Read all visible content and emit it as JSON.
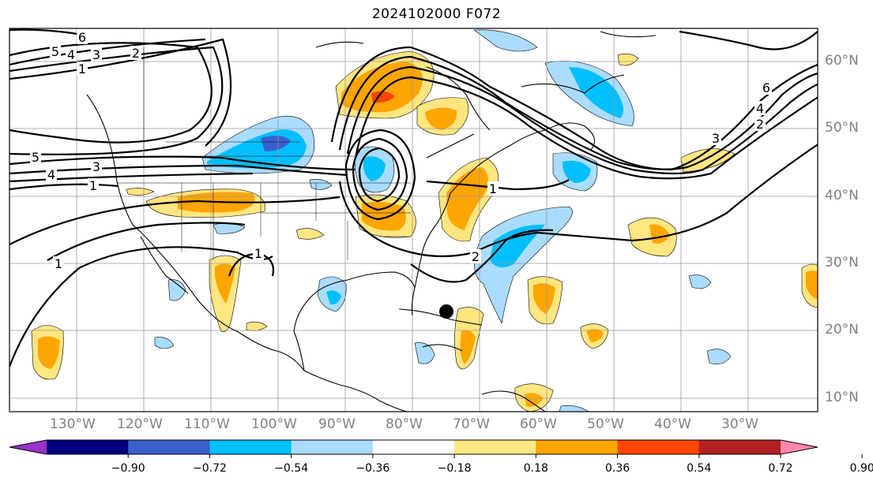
{
  "title": "2024102000 F072",
  "lat_labels": [
    "60°N",
    "50°N",
    "40°N",
    "30°N",
    "20°N",
    "10°N"
  ],
  "lon_labels": [
    "130°W",
    "120°W",
    "110°W",
    "100°W",
    "90°W",
    "80°W",
    "70°W",
    "60°W",
    "50°W",
    "40°W",
    "30°W"
  ],
  "colorbar": {
    "colors": [
      "#9933cc",
      "#000080",
      "#3a5fcd",
      "#00bfff",
      "#aadcff",
      "#ffffff",
      "#ffe680",
      "#ffa500",
      "#ff4500",
      "#b22222",
      "#ff88b0"
    ],
    "tick_labels": [
      "−0.90",
      "−0.72",
      "−0.54",
      "−0.36",
      "−0.18",
      "0.18",
      "0.36",
      "0.54",
      "0.72",
      "0.90"
    ]
  },
  "contour_labels": [
    "6",
    "5",
    "4",
    "3",
    "2",
    "1",
    "5",
    "4",
    "3",
    "1",
    "1",
    "1",
    "2",
    "1",
    "6",
    "4",
    "2",
    "3"
  ]
}
